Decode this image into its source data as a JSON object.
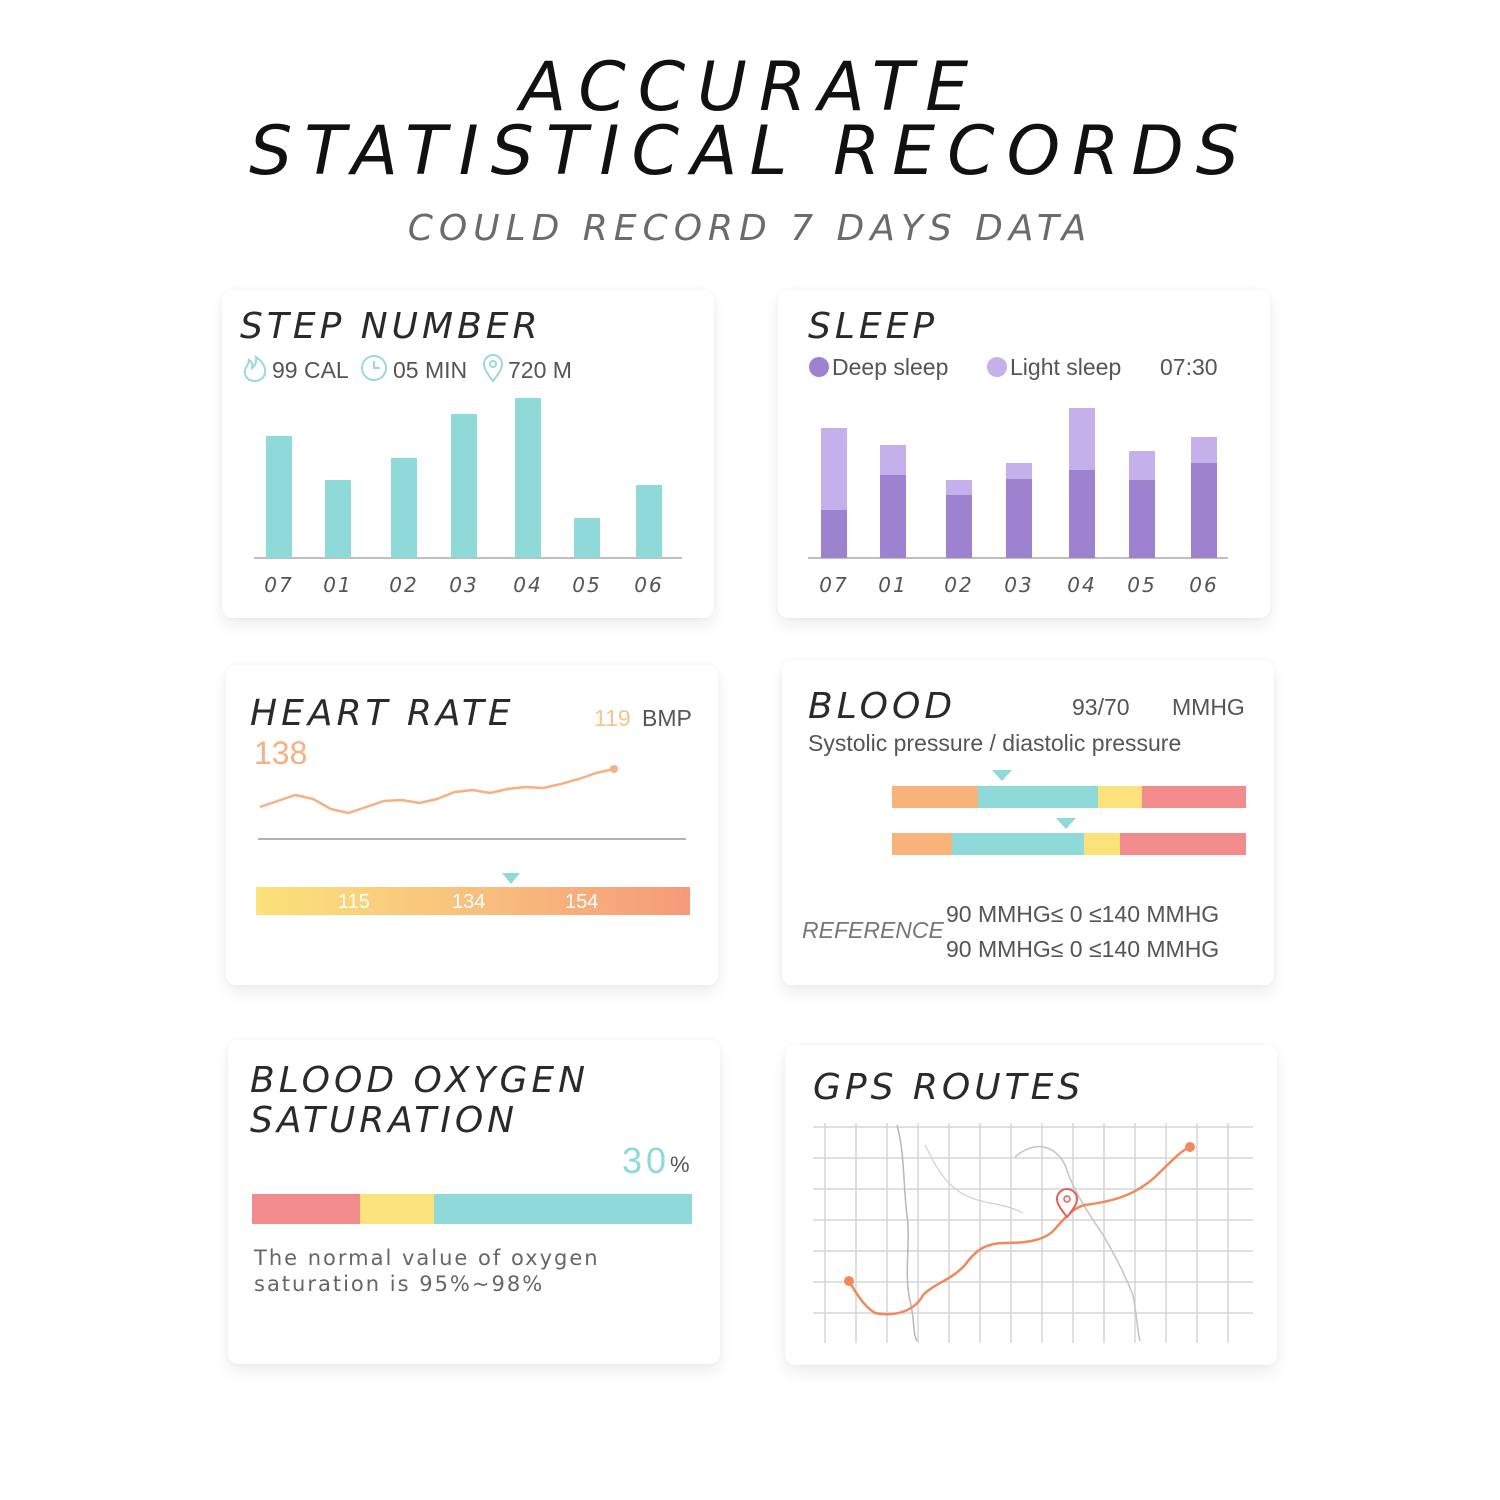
{
  "header": {
    "title_line1": "ACCURATE",
    "title_line2": "STATISTICAL RECORDS",
    "subtitle": "COULD RECORD 7 DAYS DATA"
  },
  "step": {
    "title": "STEP NUMBER",
    "stats": [
      {
        "icon": "flame-icon",
        "text": "99 CAL"
      },
      {
        "icon": "clock-icon",
        "text": "05 MIN"
      },
      {
        "icon": "location-pin-icon",
        "text": "720 M"
      }
    ],
    "bar_color": "#8fd9d8"
  },
  "sleep": {
    "title": "SLEEP",
    "legend_deep": "Deep sleep",
    "legend_light": "Light sleep",
    "duration": "07:30",
    "deep_color": "#9d83cf",
    "light_color": "#c4b0ea"
  },
  "heart": {
    "title": "HEART RATE",
    "current_value": "119",
    "unit": "BMP",
    "max_value": "138",
    "zone_labels": [
      "115",
      "134",
      "154"
    ],
    "line_color": "#f4b184"
  },
  "blood": {
    "title": "BLOOD",
    "value": "93/70",
    "unit": "MMHG",
    "description": "Systolic pressure / diastolic pressure",
    "reference_label": "REFERENCE",
    "reference_lines": [
      "90 MMHG≤  0 ≤140 MMHG",
      "90 MMHG≤  0 ≤140 MMHG"
    ],
    "bar1_marker": 0.31,
    "bar2_marker": 0.49
  },
  "oxygen": {
    "title_line1": "BLOOD OXYGEN",
    "title_line2": "SATURATION",
    "value": "30",
    "unit": "%",
    "note_line1": "The normal value of oxygen",
    "note_line2": "saturation is 95%~98%"
  },
  "gps": {
    "title": "GPS ROUTES",
    "route_color": "#f08a5d"
  },
  "chart_data": [
    {
      "type": "bar",
      "categories": [
        "07",
        "01",
        "02",
        "03",
        "04",
        "05",
        "06"
      ],
      "values": [
        122,
        78,
        100,
        144,
        160,
        40,
        73
      ]
    },
    {
      "type": "bar",
      "categories": [
        "07",
        "01",
        "02",
        "03",
        "04",
        "05",
        "06"
      ],
      "series": [
        {
          "name": "Deep sleep",
          "values": [
            48,
            83,
            63,
            79,
            88,
            78,
            95
          ]
        },
        {
          "name": "Light sleep",
          "values": [
            82,
            30,
            15,
            16,
            62,
            29,
            26
          ]
        }
      ]
    },
    {
      "type": "line",
      "x": [
        0,
        1,
        2,
        3,
        4,
        5,
        6,
        7,
        8,
        9,
        10,
        11,
        12,
        13,
        14,
        15,
        16,
        17,
        18,
        19,
        20
      ],
      "y": [
        10,
        16,
        22,
        18,
        8,
        4,
        10,
        16,
        17,
        14,
        18,
        25,
        27,
        24,
        28,
        30,
        29,
        33,
        38,
        44,
        48
      ]
    }
  ]
}
